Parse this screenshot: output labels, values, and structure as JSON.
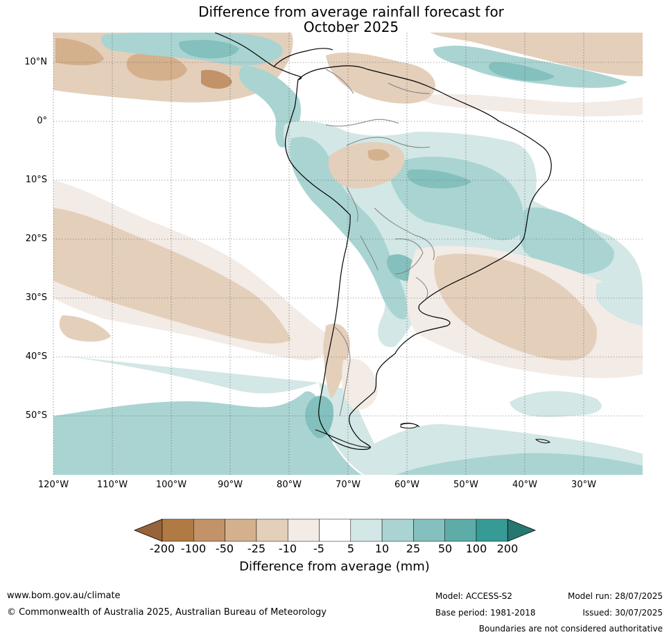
{
  "title_line1": "Difference from average rainfall forecast for",
  "title_line2": "October 2025",
  "lat_labels": [
    "10°N",
    "0°",
    "10°S",
    "20°S",
    "30°S",
    "40°S",
    "50°S"
  ],
  "lon_labels": [
    "120°W",
    "110°W",
    "100°W",
    "90°W",
    "80°W",
    "70°W",
    "60°W",
    "50°W",
    "40°W",
    "30°W"
  ],
  "colorbar": {
    "ticks": [
      "-200",
      "-100",
      "-50",
      "-25",
      "-10",
      "-5",
      "5",
      "10",
      "25",
      "50",
      "100",
      "200"
    ],
    "colors": [
      "#97633a",
      "#b07a44",
      "#c29268",
      "#d4b08d",
      "#e4cfbb",
      "#f3ebe5",
      "#ffffff",
      "#d2e7e6",
      "#a9d4d2",
      "#84c0bd",
      "#5eaca8",
      "#369a95",
      "#277771"
    ],
    "title": "Difference from average (mm)"
  },
  "footer": {
    "website": "www.bom.gov.au/climate",
    "copyright": "© Commonwealth of Australia 2025, Australian Bureau of Meteorology",
    "model": "Model: ACCESS-S2",
    "base_period": "Base period: 1981-2018",
    "model_run": "Model run: 28/07/2025",
    "issued": "Issued: 30/07/2025",
    "disclaimer": "Boundaries are not considered authoritative"
  }
}
